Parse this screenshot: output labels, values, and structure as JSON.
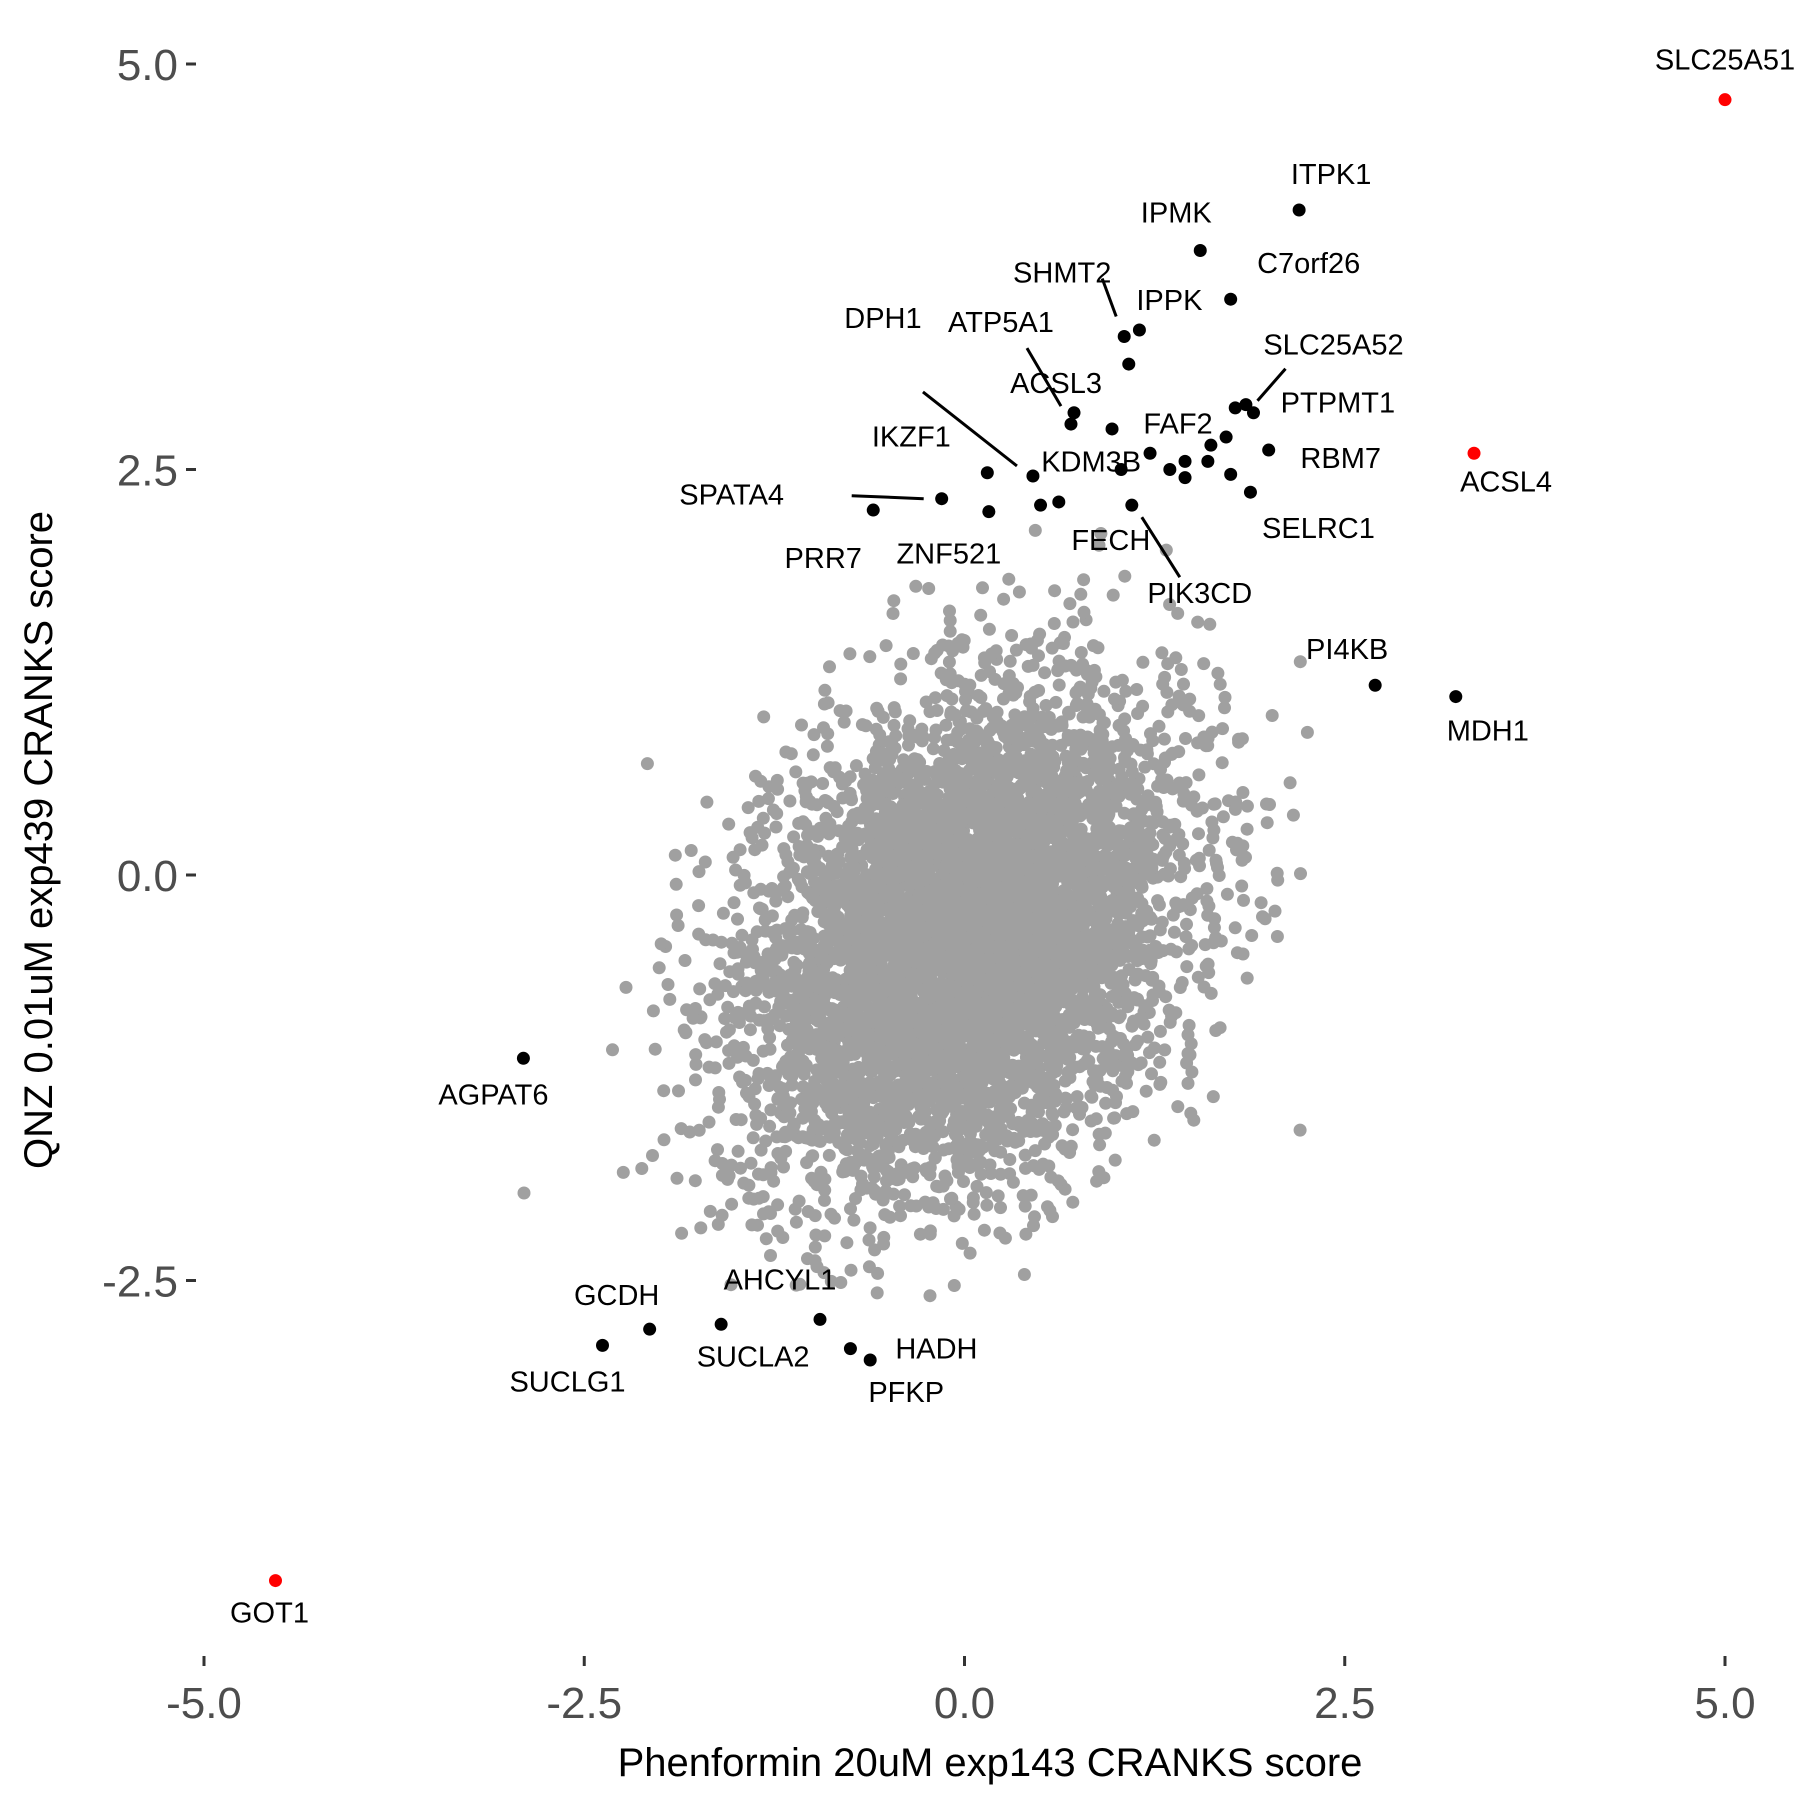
{
  "chart_data": {
    "type": "scatter",
    "title": "",
    "xlabel": "Phenformin 20uM exp143 CRANKS score",
    "ylabel": "QNZ 0.01uM exp439 CRANKS score",
    "xlim": [
      -5.15,
      5.2
    ],
    "ylim": [
      -4.8,
      5.2
    ],
    "x_ticks": [
      -5.0,
      -2.5,
      0.0,
      2.5,
      5.0
    ],
    "y_ticks": [
      -2.5,
      0.0,
      2.5,
      5.0
    ],
    "x_tick_labels": [
      "-5.0",
      "-2.5",
      "0.0",
      "2.5",
      "5.0"
    ],
    "y_tick_labels": [
      "-2.5",
      "0.0",
      "2.5",
      "5.0"
    ],
    "grid": false,
    "colors": {
      "background": "#ffffff",
      "background_points": "#a0a0a0",
      "highlight_black": "#000000",
      "highlight_red": "#ff0000",
      "tick_text": "#4d4d4d"
    },
    "background_cloud": {
      "description_count_estimate": 6000,
      "x_mean": 0.0,
      "x_sd": 0.7,
      "y_mean": -0.4,
      "y_sd": 0.75,
      "correlation": 0.3
    },
    "labeled_points": [
      {
        "label": "SLC25A51",
        "x": 5.0,
        "y": 4.78,
        "color": "red"
      },
      {
        "label": "ACSL4",
        "x": 3.35,
        "y": 2.6,
        "color": "red"
      },
      {
        "label": "GOT1",
        "x": -4.53,
        "y": -4.35,
        "color": "red"
      },
      {
        "label": "ITPK1",
        "x": 2.2,
        "y": 4.1,
        "color": "black"
      },
      {
        "label": "IPMK",
        "x": 1.55,
        "y": 3.85,
        "color": "black"
      },
      {
        "label": "C7orf26",
        "x": 1.75,
        "y": 3.55,
        "color": "black"
      },
      {
        "label": "SHMT2",
        "x": 1.05,
        "y": 3.32,
        "color": "black"
      },
      {
        "label": "IPPK",
        "x": 1.15,
        "y": 3.36,
        "color": "black"
      },
      {
        "label": "ATP5A1",
        "x": 0.7,
        "y": 2.78,
        "color": "black"
      },
      {
        "label": "SLC25A52",
        "x": 1.9,
        "y": 2.85,
        "color": "black"
      },
      {
        "label": "DPH1",
        "x": 0.45,
        "y": 2.46,
        "color": "black"
      },
      {
        "label": "ACSL3",
        "x": 0.97,
        "y": 2.75,
        "color": "black"
      },
      {
        "label": "FAF2",
        "x": 1.22,
        "y": 2.6,
        "color": "black"
      },
      {
        "label": "PTPMT1",
        "x": 1.85,
        "y": 2.9,
        "color": "black"
      },
      {
        "label": "IKZF1",
        "x": 0.15,
        "y": 2.48,
        "color": "black"
      },
      {
        "label": "KDM3B",
        "x": 1.03,
        "y": 2.5,
        "color": "black"
      },
      {
        "label": "RBM7",
        "x": 2.0,
        "y": 2.62,
        "color": "black"
      },
      {
        "label": "SPATA4",
        "x": -0.15,
        "y": 2.32,
        "color": "black"
      },
      {
        "label": "PRR7",
        "x": -0.6,
        "y": 2.25,
        "color": "black"
      },
      {
        "label": "ZNF521",
        "x": 0.16,
        "y": 2.24,
        "color": "black"
      },
      {
        "label": "FECH",
        "x": 0.62,
        "y": 2.3,
        "color": "black"
      },
      {
        "label": "SELRC1",
        "x": 1.88,
        "y": 2.36,
        "color": "black"
      },
      {
        "label": "PIK3CD",
        "x": 1.1,
        "y": 2.28,
        "color": "black"
      },
      {
        "label": "PI4KB",
        "x": 2.7,
        "y": 1.17,
        "color": "black"
      },
      {
        "label": "MDH1",
        "x": 3.23,
        "y": 1.1,
        "color": "black"
      },
      {
        "label": "AGPAT6",
        "x": -2.9,
        "y": -1.13,
        "color": "black"
      },
      {
        "label": "GCDH",
        "x": -2.07,
        "y": -2.8,
        "color": "black"
      },
      {
        "label": "SUCLG1",
        "x": -2.38,
        "y": -2.9,
        "color": "black"
      },
      {
        "label": "AHCYL1",
        "x": -0.95,
        "y": -2.74,
        "color": "black"
      },
      {
        "label": "SUCLA2",
        "x": -1.6,
        "y": -2.77,
        "color": "black"
      },
      {
        "label": "HADH",
        "x": -0.75,
        "y": -2.92,
        "color": "black"
      },
      {
        "label": "PFKP",
        "x": -0.62,
        "y": -2.99,
        "color": "black"
      }
    ],
    "unlabeled_highlight_points": [
      {
        "x": 1.72,
        "y": 2.7
      },
      {
        "x": 1.62,
        "y": 2.65
      },
      {
        "x": 1.45,
        "y": 2.55
      },
      {
        "x": 1.6,
        "y": 2.55
      },
      {
        "x": 1.35,
        "y": 2.5
      },
      {
        "x": 1.45,
        "y": 2.45
      },
      {
        "x": 1.75,
        "y": 2.47
      },
      {
        "x": 1.78,
        "y": 2.88
      },
      {
        "x": 0.5,
        "y": 2.28
      },
      {
        "x": 1.08,
        "y": 3.15
      },
      {
        "x": 0.72,
        "y": 2.85
      }
    ]
  }
}
